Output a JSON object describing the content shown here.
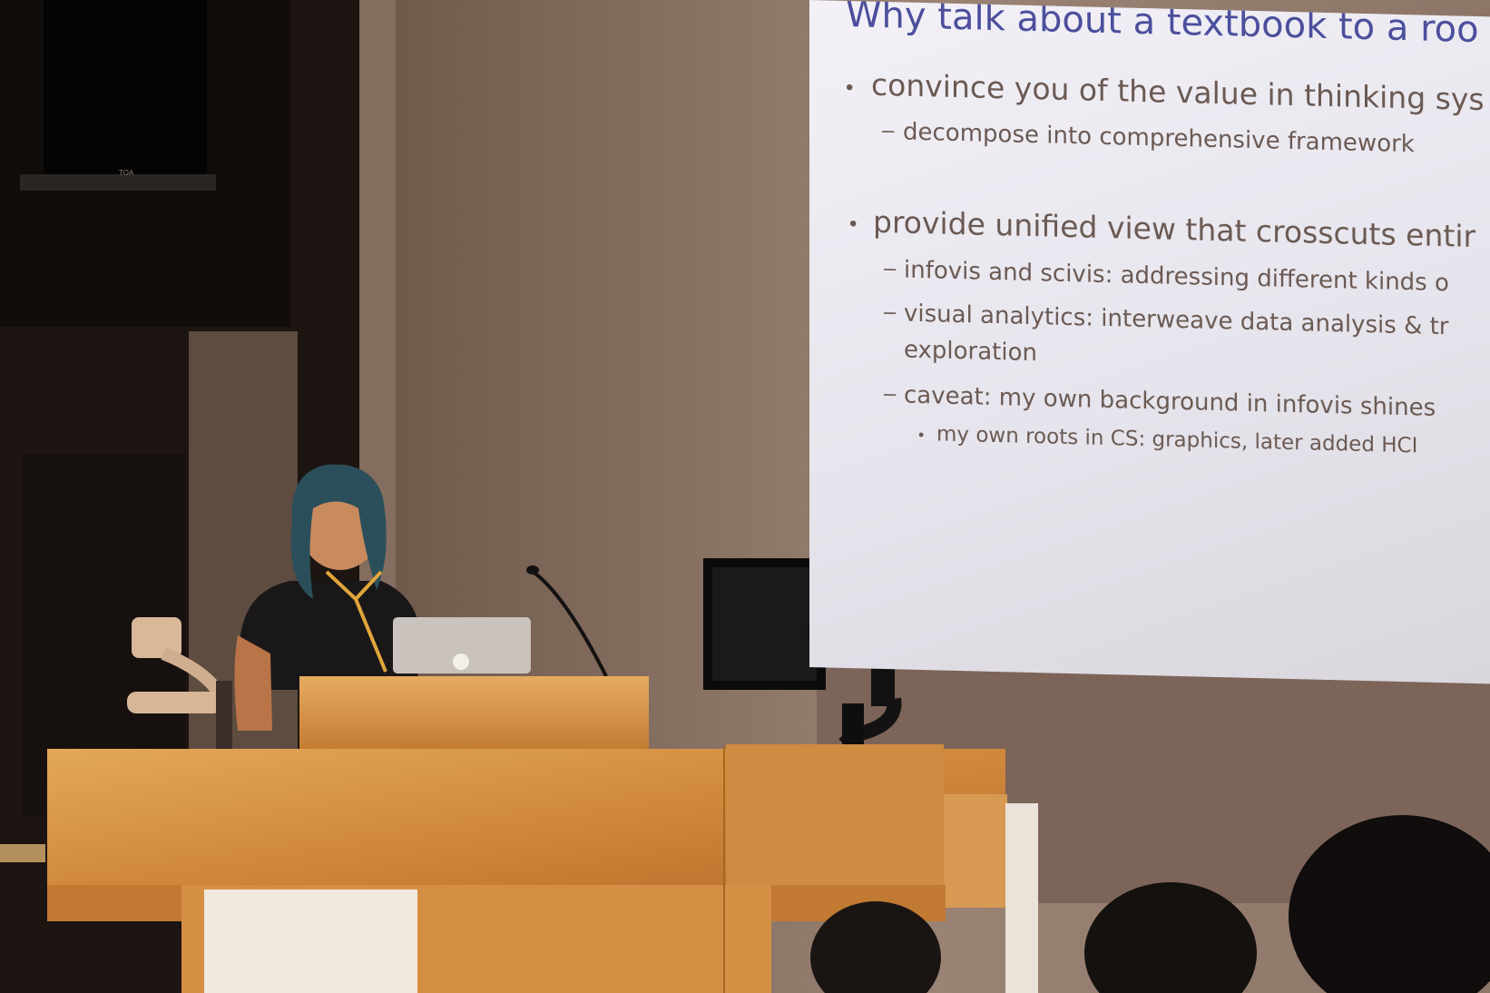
{
  "slide": {
    "title": "Why talk about a textbook to a roo",
    "bullets": [
      "convince you of the value in thinking sys",
      "decompose into comprehensive framework",
      "provide unified view that crosscuts entir",
      "infovis and scivis: addressing different kinds o",
      "visual analytics: interweave data analysis & tr",
      "exploration",
      "caveat: my own background in infovis shines",
      "my own roots in CS: graphics, later added HCI"
    ]
  },
  "speaker_label": "TOA",
  "colors": {
    "slide_title": "#4b4f9c",
    "slide_text": "#6b5a53",
    "podium": "#d9974a",
    "wall": "#8a7467"
  }
}
